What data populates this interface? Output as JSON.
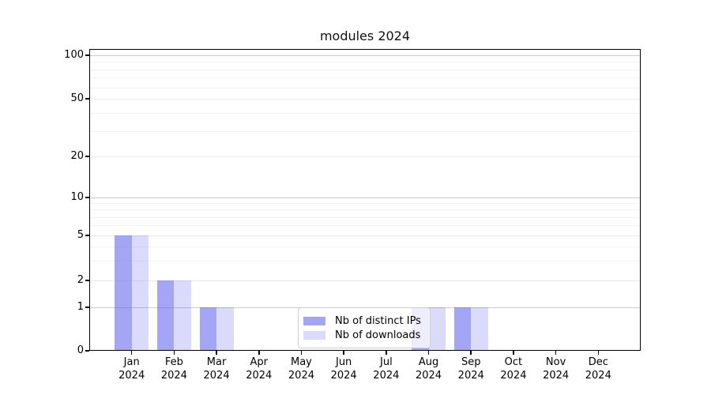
{
  "chart_data": {
    "type": "bar",
    "title": "modules 2024",
    "categories": [
      "Jan 2024",
      "Feb 2024",
      "Mar 2024",
      "Apr 2024",
      "May 2024",
      "Jun 2024",
      "Jul 2024",
      "Aug 2024",
      "Sep 2024",
      "Oct 2024",
      "Nov 2024",
      "Dec 2024"
    ],
    "series": [
      {
        "name": "Nb of distinct IPs",
        "base_color": "#5555ee",
        "alpha": 0.53,
        "display_color": "#a5a5ef",
        "values": [
          5,
          2,
          1,
          0,
          0,
          0,
          0,
          1,
          1,
          0,
          0,
          0
        ]
      },
      {
        "name": "Nb of downloads",
        "base_color": "#5555ee",
        "alpha": 0.22,
        "display_color": "#d9d9f7",
        "values": [
          5,
          2,
          1,
          0,
          0,
          0,
          0,
          1,
          1,
          0,
          0,
          0
        ]
      }
    ],
    "yticks": [
      0,
      1,
      2,
      5,
      10,
      20,
      50,
      100
    ],
    "ylim": [
      0,
      110
    ],
    "yscale": "symlog",
    "xlabel": "",
    "ylabel": "",
    "grid": true,
    "legend_position": "lower-center-inside",
    "colors": {
      "grid_major": "#cbcbcb",
      "grid_minor": "#f2f2f2",
      "axis": "#000000",
      "background": "#ffffff"
    }
  }
}
